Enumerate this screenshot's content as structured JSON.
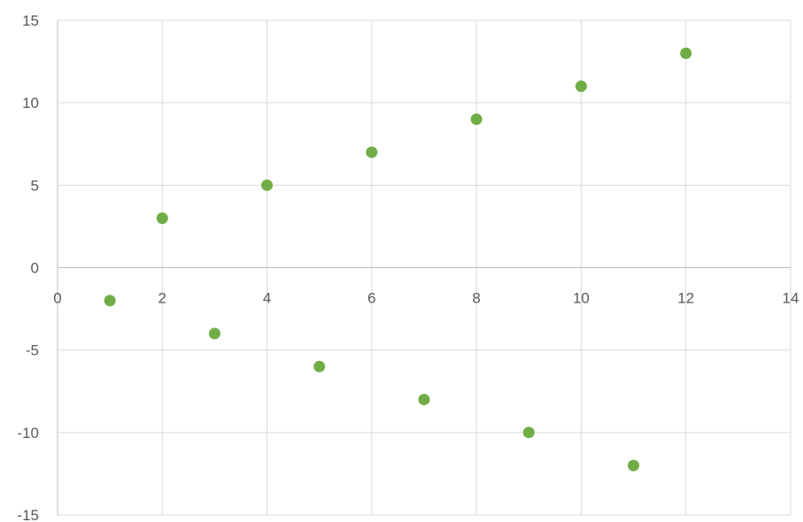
{
  "chart_data": {
    "type": "scatter",
    "title": "",
    "xlabel": "",
    "ylabel": "",
    "xlim": [
      0,
      14
    ],
    "ylim": [
      -15,
      15
    ],
    "x_ticks": [
      0,
      2,
      4,
      6,
      8,
      10,
      12,
      14
    ],
    "y_ticks": [
      -15,
      -10,
      -5,
      0,
      5,
      10,
      15
    ],
    "x_tick_labels": [
      "0",
      "2",
      "4",
      "6",
      "8",
      "10",
      "12",
      "14"
    ],
    "y_tick_labels": [
      "-15",
      "-10",
      "-5",
      "0",
      "5",
      "10",
      "15"
    ],
    "grid": true,
    "legend": "none",
    "series": [
      {
        "color": "#70ad47",
        "points": [
          {
            "x": 1,
            "y": -2
          },
          {
            "x": 2,
            "y": 3
          },
          {
            "x": 3,
            "y": -4
          },
          {
            "x": 4,
            "y": 5
          },
          {
            "x": 5,
            "y": -6
          },
          {
            "x": 6,
            "y": 7
          },
          {
            "x": 7,
            "y": -8
          },
          {
            "x": 8,
            "y": 9
          },
          {
            "x": 9,
            "y": -10
          },
          {
            "x": 10,
            "y": 11
          },
          {
            "x": 11,
            "y": -12
          },
          {
            "x": 12,
            "y": 13
          }
        ]
      }
    ]
  }
}
